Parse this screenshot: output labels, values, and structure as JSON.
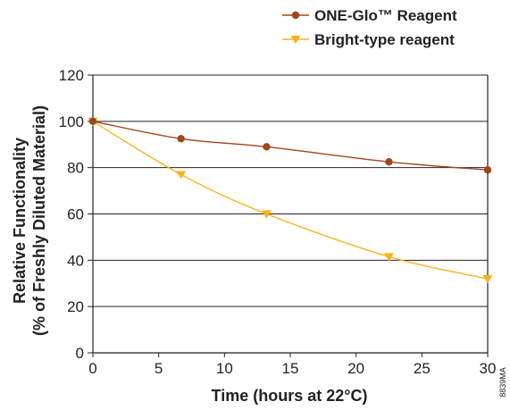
{
  "chart_data": {
    "type": "line",
    "xlabel": "Time (hours at 22°C)",
    "ylabel_line1": "Relative Functionality",
    "ylabel_line2": "(% of Freshly Diluted Material)",
    "xlim": [
      0,
      30
    ],
    "ylim": [
      0,
      120
    ],
    "x_ticks": [
      "0",
      "5",
      "10",
      "15",
      "20",
      "25",
      "30"
    ],
    "y_ticks": [
      "0",
      "20",
      "40",
      "60",
      "80",
      "100",
      "120"
    ],
    "grid": "horizontal",
    "legend_position": "top-right",
    "series": [
      {
        "name": "ONE-Glo™ Reagent",
        "color": "#a0461c",
        "marker": "circle",
        "x": [
          0,
          6.7,
          13.2,
          22.5,
          30
        ],
        "y": [
          100,
          92.5,
          89,
          82.5,
          79
        ]
      },
      {
        "name": "Bright-type reagent",
        "color": "#f5b41e",
        "marker": "triangle-down",
        "x": [
          0,
          6.7,
          13.2,
          22.5,
          30
        ],
        "y": [
          100,
          77,
          60,
          41.5,
          32
        ]
      }
    ]
  },
  "figure_id": "8839MA"
}
